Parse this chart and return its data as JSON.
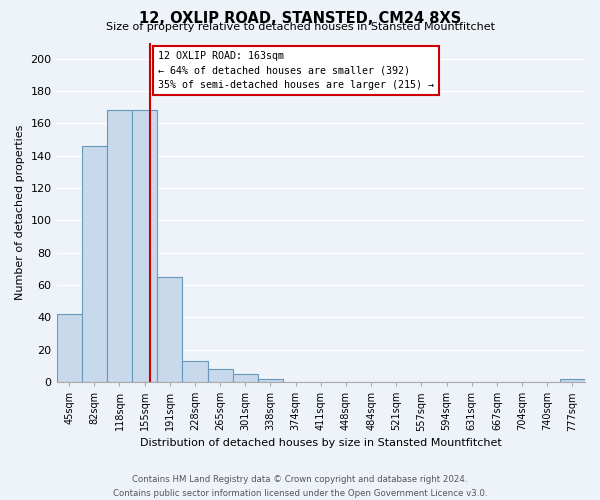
{
  "title": "12, OXLIP ROAD, STANSTED, CM24 8XS",
  "subtitle": "Size of property relative to detached houses in Stansted Mountfitchet",
  "xlabel": "Distribution of detached houses by size in Stansted Mountfitchet",
  "ylabel": "Number of detached properties",
  "bar_labels": [
    "45sqm",
    "82sqm",
    "118sqm",
    "155sqm",
    "191sqm",
    "228sqm",
    "265sqm",
    "301sqm",
    "338sqm",
    "374sqm",
    "411sqm",
    "448sqm",
    "484sqm",
    "521sqm",
    "557sqm",
    "594sqm",
    "631sqm",
    "667sqm",
    "704sqm",
    "740sqm",
    "777sqm"
  ],
  "bar_values": [
    42,
    146,
    168,
    168,
    65,
    13,
    8,
    5,
    2,
    0,
    0,
    0,
    0,
    0,
    0,
    0,
    0,
    0,
    0,
    0,
    2
  ],
  "bar_color": "#c8d9eb",
  "bar_edge_color": "#6699bb",
  "vline_color": "#cc0000",
  "vline_pos": 3.22,
  "annotation_text": "12 OXLIP ROAD: 163sqm\n← 64% of detached houses are smaller (392)\n35% of semi-detached houses are larger (215) →",
  "annotation_box_color": "#ffffff",
  "annotation_box_edge_color": "#cc0000",
  "ylim": [
    0,
    210
  ],
  "yticks": [
    0,
    20,
    40,
    60,
    80,
    100,
    120,
    140,
    160,
    180,
    200
  ],
  "footer": "Contains HM Land Registry data © Crown copyright and database right 2024.\nContains public sector information licensed under the Open Government Licence v3.0.",
  "bg_color": "#eef3f9",
  "grid_color": "#ffffff"
}
